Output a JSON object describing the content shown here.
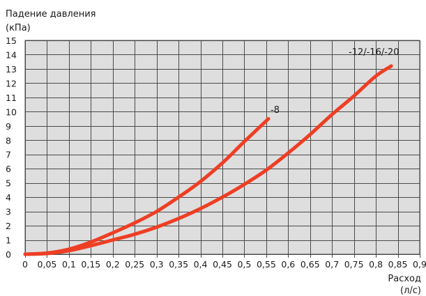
{
  "chart_data": {
    "type": "line",
    "ylabel_line1": "Падение давления",
    "ylabel_line2": "(кПа)",
    "xlabel_line1": "Расход",
    "xlabel_line2": "(л/с)",
    "xlim": [
      0,
      0.9
    ],
    "ylim": [
      0,
      15
    ],
    "xticks": [
      0,
      0.05,
      0.1,
      0.15,
      0.2,
      0.25,
      0.3,
      0.35,
      0.4,
      0.45,
      0.5,
      0.55,
      0.6,
      0.65,
      0.7,
      0.75,
      0.8,
      0.85,
      0.9
    ],
    "xtick_labels": [
      "0",
      "0,05",
      "0,1",
      "0,15",
      "0,2",
      "0,25",
      "0,3",
      "0,35",
      "0,4",
      "0,45",
      "0,5",
      "0,55",
      "0,6",
      "0,65",
      "0,7",
      "0,75",
      "0,8",
      "0,85",
      "0,9"
    ],
    "yticks": [
      0,
      1,
      2,
      3,
      4,
      5,
      6,
      7,
      8,
      9,
      10,
      11,
      12,
      13,
      14,
      15
    ],
    "ytick_labels": [
      "0",
      "1",
      "2",
      "3",
      "4",
      "5",
      "6",
      "7",
      "8",
      "9",
      "10",
      "11",
      "12",
      "13",
      "14",
      "15"
    ],
    "grid": true,
    "plot_background": "#dedede",
    "grid_color": "#4a4a4a",
    "series": [
      {
        "name": "-8",
        "color": "#ee3e24",
        "points": [
          [
            0,
            0.0
          ],
          [
            0.05,
            0.08
          ],
          [
            0.1,
            0.35
          ],
          [
            0.15,
            0.85
          ],
          [
            0.2,
            1.5
          ],
          [
            0.25,
            2.2
          ],
          [
            0.3,
            3.0
          ],
          [
            0.35,
            4.0
          ],
          [
            0.4,
            5.1
          ],
          [
            0.45,
            6.4
          ],
          [
            0.5,
            7.9
          ],
          [
            0.555,
            9.5
          ]
        ]
      },
      {
        "name": "-12/-16/-20",
        "color": "#ee3e24",
        "points": [
          [
            0,
            0.0
          ],
          [
            0.05,
            0.05
          ],
          [
            0.1,
            0.25
          ],
          [
            0.15,
            0.6
          ],
          [
            0.2,
            1.0
          ],
          [
            0.25,
            1.4
          ],
          [
            0.3,
            1.9
          ],
          [
            0.35,
            2.5
          ],
          [
            0.4,
            3.2
          ],
          [
            0.45,
            4.0
          ],
          [
            0.5,
            4.9
          ],
          [
            0.55,
            5.9
          ],
          [
            0.6,
            7.1
          ],
          [
            0.65,
            8.4
          ],
          [
            0.7,
            9.8
          ],
          [
            0.75,
            11.1
          ],
          [
            0.8,
            12.5
          ],
          [
            0.835,
            13.2
          ]
        ]
      }
    ]
  }
}
